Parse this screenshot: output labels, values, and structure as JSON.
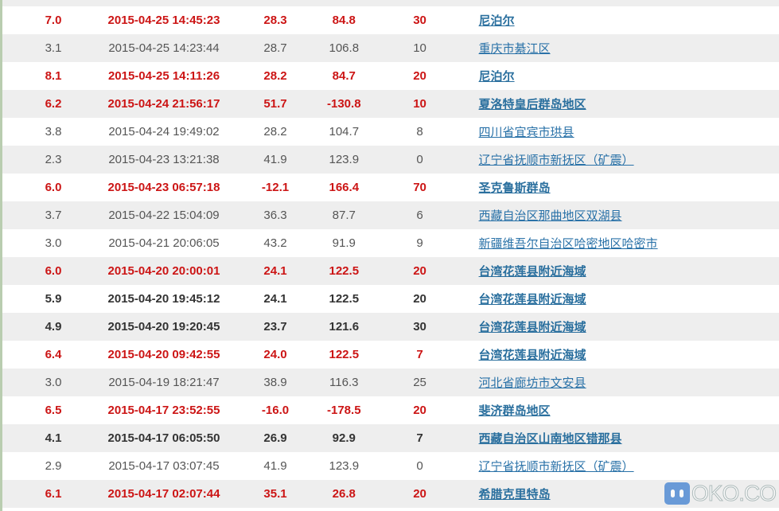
{
  "colors": {
    "major": "#cc1515",
    "link": "#2a72a8",
    "row_alt": "#eeeeee"
  },
  "rows": [
    {
      "mag": "7.0",
      "time": "2015-04-25 14:45:23",
      "lat": "28.3",
      "lon": "84.8",
      "depth": "30",
      "place": "尼泊尔",
      "style": "red"
    },
    {
      "mag": "3.1",
      "time": "2015-04-25 14:23:44",
      "lat": "28.7",
      "lon": "106.8",
      "depth": "10",
      "place": "重庆市綦江区",
      "style": "normal"
    },
    {
      "mag": "8.1",
      "time": "2015-04-25 14:11:26",
      "lat": "28.2",
      "lon": "84.7",
      "depth": "20",
      "place": "尼泊尔",
      "style": "red"
    },
    {
      "mag": "6.2",
      "time": "2015-04-24 21:56:17",
      "lat": "51.7",
      "lon": "-130.8",
      "depth": "10",
      "place": "夏洛特皇后群岛地区",
      "style": "red"
    },
    {
      "mag": "3.8",
      "time": "2015-04-24 19:49:02",
      "lat": "28.2",
      "lon": "104.7",
      "depth": "8",
      "place": "四川省宜宾市珙县",
      "style": "normal"
    },
    {
      "mag": "2.3",
      "time": "2015-04-23 13:21:38",
      "lat": "41.9",
      "lon": "123.9",
      "depth": "0",
      "place": "辽宁省抚顺市新抚区（矿震）",
      "style": "normal"
    },
    {
      "mag": "6.0",
      "time": "2015-04-23 06:57:18",
      "lat": "-12.1",
      "lon": "166.4",
      "depth": "70",
      "place": "圣克鲁斯群岛",
      "style": "red"
    },
    {
      "mag": "3.7",
      "time": "2015-04-22 15:04:09",
      "lat": "36.3",
      "lon": "87.7",
      "depth": "6",
      "place": "西藏自治区那曲地区双湖县",
      "style": "normal"
    },
    {
      "mag": "3.0",
      "time": "2015-04-21 20:06:05",
      "lat": "43.2",
      "lon": "91.9",
      "depth": "9",
      "place": "新疆维吾尔自治区哈密地区哈密市",
      "style": "normal"
    },
    {
      "mag": "6.0",
      "time": "2015-04-20 20:00:01",
      "lat": "24.1",
      "lon": "122.5",
      "depth": "20",
      "place": "台湾花莲县附近海域",
      "style": "red"
    },
    {
      "mag": "5.9",
      "time": "2015-04-20 19:45:12",
      "lat": "24.1",
      "lon": "122.5",
      "depth": "20",
      "place": "台湾花莲县附近海域",
      "style": "strong"
    },
    {
      "mag": "4.9",
      "time": "2015-04-20 19:20:45",
      "lat": "23.7",
      "lon": "121.6",
      "depth": "30",
      "place": "台湾花莲县附近海域",
      "style": "strong"
    },
    {
      "mag": "6.4",
      "time": "2015-04-20 09:42:55",
      "lat": "24.0",
      "lon": "122.5",
      "depth": "7",
      "place": "台湾花莲县附近海域",
      "style": "red"
    },
    {
      "mag": "3.0",
      "time": "2015-04-19 18:21:47",
      "lat": "38.9",
      "lon": "116.3",
      "depth": "25",
      "place": "河北省廊坊市文安县",
      "style": "normal"
    },
    {
      "mag": "6.5",
      "time": "2015-04-17 23:52:55",
      "lat": "-16.0",
      "lon": "-178.5",
      "depth": "20",
      "place": "斐济群岛地区",
      "style": "red"
    },
    {
      "mag": "4.1",
      "time": "2015-04-17 06:05:50",
      "lat": "26.9",
      "lon": "92.9",
      "depth": "7",
      "place": "西藏自治区山南地区错那县",
      "style": "strong"
    },
    {
      "mag": "2.9",
      "time": "2015-04-17 03:07:45",
      "lat": "41.9",
      "lon": "123.9",
      "depth": "0",
      "place": "辽宁省抚顺市新抚区（矿震）",
      "style": "normal"
    },
    {
      "mag": "6.1",
      "time": "2015-04-17 02:07:44",
      "lat": "35.1",
      "lon": "26.8",
      "depth": "20",
      "place": "希腊克里特岛",
      "style": "red"
    }
  ],
  "watermark": {
    "text": "OKO.CO",
    "icon": "chat-bubble-logo-icon"
  }
}
